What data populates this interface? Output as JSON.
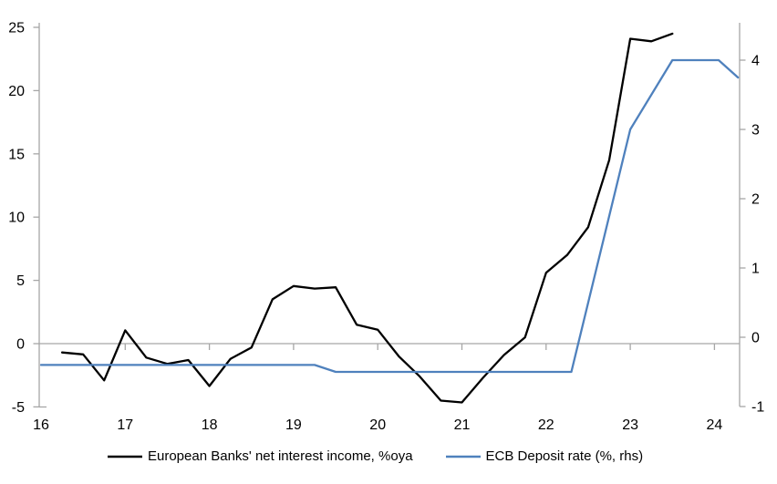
{
  "colors": {
    "axis": "#a6a6a6",
    "zero_line": "#a6a6a6",
    "nii_line": "#000000",
    "ecb_line": "#4f81bd",
    "text": "#000000"
  },
  "chart_data": {
    "type": "line",
    "title": "",
    "xlabel": "",
    "ylabel_left": "",
    "ylabel_right": "",
    "x_ticks": [
      16,
      17,
      18,
      19,
      20,
      21,
      22,
      23,
      24
    ],
    "x_range": [
      16,
      24.3
    ],
    "left_ticks": [
      -5,
      0,
      5,
      10,
      15,
      20,
      25
    ],
    "left_ylim": [
      -5,
      25
    ],
    "right_ticks": [
      -1,
      0,
      1,
      2,
      3,
      4
    ],
    "right_ylim": [
      -1,
      4.5
    ],
    "grid": "zero-line-only",
    "legend_position": "bottom",
    "series": [
      {
        "name": "European Banks' net interest income, %oya",
        "axis": "left",
        "color": "#000000",
        "x": [
          16.25,
          16.5,
          16.75,
          17.0,
          17.25,
          17.5,
          17.75,
          18.0,
          18.25,
          18.5,
          18.75,
          19.0,
          19.25,
          19.5,
          19.75,
          20.0,
          20.25,
          20.5,
          20.75,
          21.0,
          21.25,
          21.5,
          21.75,
          22.0,
          22.25,
          22.5,
          22.75,
          23.0,
          23.25,
          23.5
        ],
        "values": [
          -0.7,
          -0.85,
          -2.9,
          1.05,
          -1.1,
          -1.6,
          -1.3,
          -3.35,
          -1.2,
          -0.3,
          3.5,
          4.55,
          4.35,
          4.45,
          1.5,
          1.1,
          -1.0,
          -2.6,
          -4.5,
          -4.65,
          -2.7,
          -0.9,
          0.5,
          5.6,
          7.0,
          9.2,
          14.5,
          24.1,
          23.9,
          24.5
        ]
      },
      {
        "name": "ECB Deposit rate (%, rhs)",
        "axis": "right",
        "color": "#4f81bd",
        "x": [
          16.0,
          19.25,
          19.5,
          22.3,
          23.0,
          23.5,
          24.05,
          24.28
        ],
        "values": [
          -0.4,
          -0.4,
          -0.5,
          -0.5,
          3.0,
          4.0,
          4.0,
          3.75
        ]
      }
    ]
  },
  "legend": {
    "item1": "European Banks' net interest income, %oya",
    "item2": "ECB Deposit rate (%, rhs)"
  }
}
